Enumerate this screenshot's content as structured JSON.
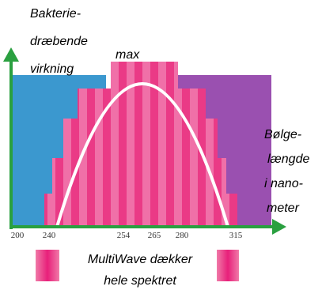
{
  "y_axis_label": [
    "Bakterie-",
    "dræbende",
    "virkning"
  ],
  "peak_label": "max",
  "x_axis_label": [
    "Bølge-",
    "længde",
    "i nano-",
    "meter"
  ],
  "x_tick_labels": [
    "200",
    "240",
    "254",
    "265",
    "280",
    "315"
  ],
  "caption": [
    "MultiWave dækker",
    "hele spektret"
  ]
}
